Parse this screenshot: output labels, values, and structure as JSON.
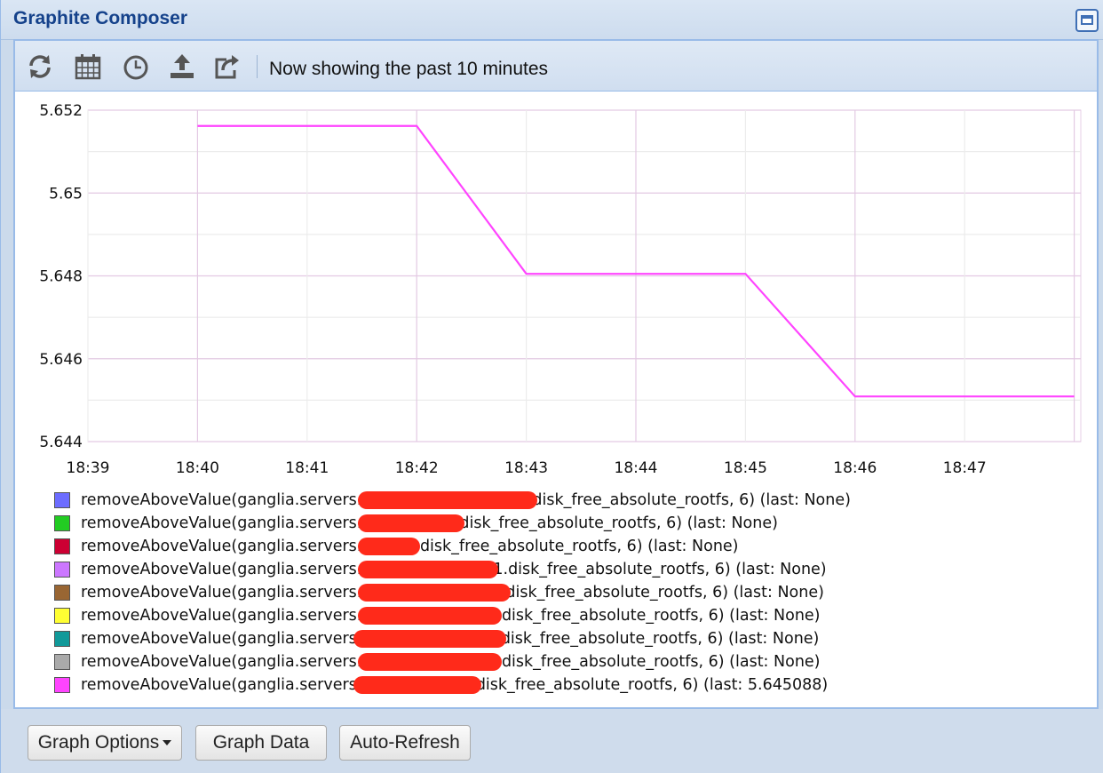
{
  "window": {
    "title": "Graphite Composer"
  },
  "toolbar": {
    "status_text": "Now showing the past 10 minutes",
    "icons": [
      "refresh-icon",
      "calendar-icon",
      "clock-icon",
      "upload-icon",
      "share-icon"
    ]
  },
  "chart_data": {
    "type": "line",
    "x": [
      "18:40",
      "18:41",
      "18:42",
      "18:43",
      "18:44",
      "18:45",
      "18:46",
      "18:47",
      "18:48"
    ],
    "x_ticks": [
      "18:39",
      "18:40",
      "18:41",
      "18:42",
      "18:43",
      "18:44",
      "18:45",
      "18:46",
      "18:47"
    ],
    "y_ticks": [
      "5.652",
      "5.65",
      "5.648",
      "5.646",
      "5.644"
    ],
    "ylim": [
      5.644,
      5.652
    ],
    "grid": true,
    "series": [
      {
        "color": "#ff44ff",
        "values": [
          5.65162,
          5.65162,
          5.65162,
          5.64805,
          5.64805,
          5.64805,
          5.64509,
          5.64509,
          5.64509
        ]
      }
    ]
  },
  "legend": {
    "items": [
      {
        "color": "#6c6cff",
        "prefix": "removeAboveValue(ganglia.servers.",
        "suffix": "disk_free_absolute_rootfs, 6) (last: None)"
      },
      {
        "color": "#22cc22",
        "prefix": "removeAboveValue(ganglia.servers.",
        "suffix": "disk_free_absolute_rootfs, 6) (last: None)"
      },
      {
        "color": "#cc0033",
        "prefix": "removeAboveValue(ganglia.servers.",
        "suffix": ".disk_free_absolute_rootfs, 6) (last: None)"
      },
      {
        "color": "#cc77ff",
        "prefix": "removeAboveValue(ganglia.servers.",
        "suffix": "1.disk_free_absolute_rootfs, 6) (last: None)"
      },
      {
        "color": "#996633",
        "prefix": "removeAboveValue(ganglia.servers.",
        "suffix": "disk_free_absolute_rootfs, 6) (last: None)"
      },
      {
        "color": "#ffff33",
        "prefix": "removeAboveValue(ganglia.servers.",
        "suffix": ".disk_free_absolute_rootfs, 6) (last: None)"
      },
      {
        "color": "#119999",
        "prefix": "removeAboveValue(ganglia.servers",
        "suffix": "disk_free_absolute_rootfs, 6) (last: None)"
      },
      {
        "color": "#aaaaaa",
        "prefix": "removeAboveValue(ganglia.servers.",
        "suffix": ".disk_free_absolute_rootfs, 6) (last: None)"
      },
      {
        "color": "#ff44ff",
        "prefix": "removeAboveValue(ganglia.servers",
        "suffix": "disk_free_absolute_rootfs, 6) (last: 5.645088)"
      }
    ]
  },
  "buttons": {
    "graph_options": "Graph Options",
    "graph_data": "Graph Data",
    "auto_refresh": "Auto-Refresh"
  }
}
